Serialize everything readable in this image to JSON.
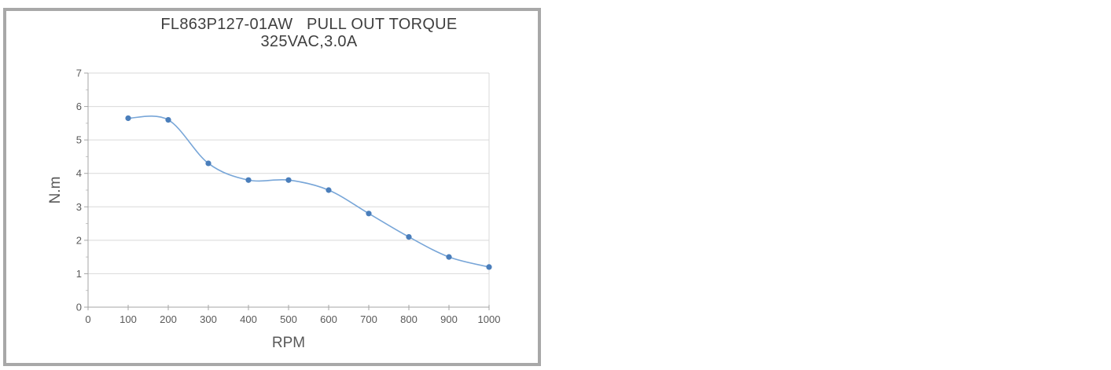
{
  "frame": {
    "border_color": "#a8a8a8",
    "background": "#ffffff"
  },
  "chart_data": {
    "type": "line",
    "title": "FL863P127-01AW   PULL OUT TORQUE",
    "subtitle": "325VAC,3.0A",
    "xlabel": "RPM",
    "ylabel": "N.m",
    "x": [
      100,
      200,
      300,
      400,
      500,
      600,
      700,
      800,
      900,
      1000
    ],
    "series": [
      {
        "name": "pull-out-torque",
        "values": [
          5.65,
          5.6,
          4.3,
          3.8,
          3.8,
          3.5,
          2.8,
          2.1,
          1.5,
          1.2
        ]
      }
    ],
    "xlim": [
      0,
      1000
    ],
    "ylim": [
      0,
      7
    ],
    "x_ticks": [
      0,
      100,
      200,
      300,
      400,
      500,
      600,
      700,
      800,
      900,
      1000
    ],
    "y_ticks": [
      0,
      1,
      2,
      3,
      4,
      5,
      6,
      7
    ],
    "y_minor_step": 0.5,
    "grid": "horizontal",
    "smooth": true,
    "legend": "none",
    "colors": {
      "line": "#78a6d8",
      "marker": "#4a7ebb",
      "grid": "#d9d9d9",
      "axis": "#a6a6a6",
      "minor_tick": "#c6c6c6",
      "tick_text": "#595959",
      "axis_title_text": "#595959",
      "title_text": "#3f3f3f"
    }
  }
}
